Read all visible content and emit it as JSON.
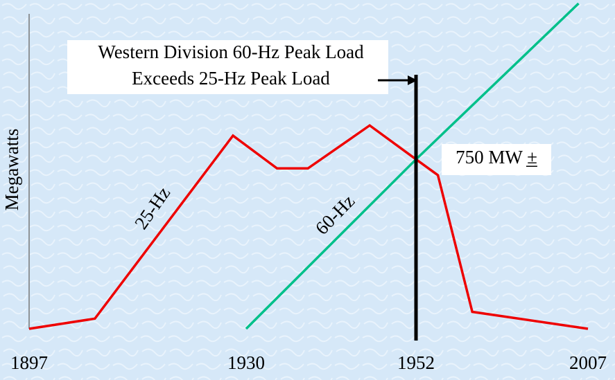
{
  "chart_data": {
    "type": "line",
    "y_label": "Megawatts",
    "xlim": [
      1897,
      2007
    ],
    "xticks": [
      1897,
      1930,
      1952,
      2007
    ],
    "ylim": [
      0,
      1440
    ],
    "series": [
      {
        "name": "25-Hz",
        "color": "#ee0000",
        "x": [
          1897,
          1907,
          1928,
          1934,
          1938,
          1946,
          1952,
          1959,
          1970,
          2007
        ],
        "values": [
          0,
          45,
          855,
          710,
          710,
          900,
          750,
          680,
          75,
          0
        ]
      },
      {
        "name": "60-Hz",
        "color": "#00c08a",
        "x": [
          1930,
          1952,
          2004
        ],
        "values": [
          0,
          750,
          1440
        ]
      }
    ],
    "marker_x": 1952,
    "annotation": {
      "lines": [
        "Western Division 60-Hz Peak Load",
        "Exceeds 25-Hz Peak Load"
      ]
    },
    "crossing_label": "750 MW ±"
  }
}
